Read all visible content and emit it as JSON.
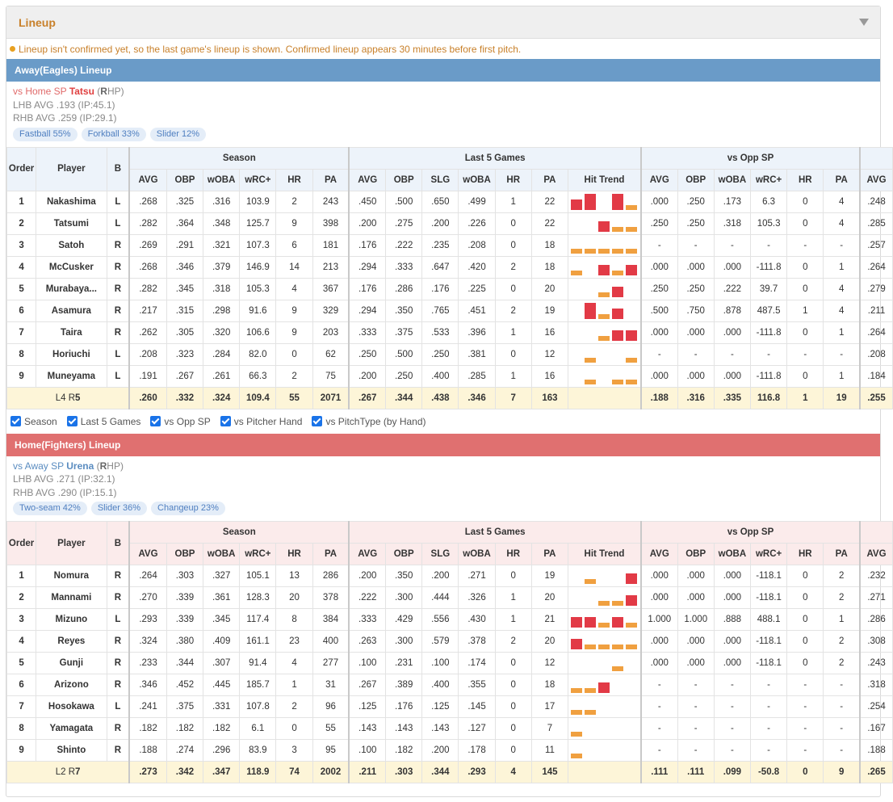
{
  "panel": {
    "title": "Lineup"
  },
  "notice": "Lineup isn't confirmed yet, so the last game's lineup is shown. Confirmed lineup appears 30 minutes before first pitch.",
  "headers": {
    "order": "Order",
    "player": "Player",
    "bats": "B",
    "season": "Season",
    "last5": "Last 5 Games",
    "vsopp": "vs Opp SP",
    "cols": {
      "avg": "AVG",
      "obp": "OBP",
      "woba": "wOBA",
      "wrc": "wRC+",
      "hr": "HR",
      "pa": "PA",
      "slg": "SLG",
      "trend": "Hit Trend"
    }
  },
  "filters": [
    "Season",
    "Last 5 Games",
    "vs Opp SP",
    "vs Pitcher Hand",
    "vs PitchType (by Hand)"
  ],
  "away": {
    "title": "Away(Eagles) Lineup",
    "sp_prefix": "vs Home SP ",
    "sp_name": "Tatsu",
    "sp_hand_open": " (",
    "sp_hand_letter": "R",
    "sp_hand_rest": "HP)",
    "lhb": "LHB AVG .193 (IP:45.1)",
    "rhb": "RHB AVG .259 (IP:29.1)",
    "pitches": [
      "Fastball 55%",
      "Forkball 33%",
      "Slider 12%"
    ],
    "rows": [
      {
        "o": "1",
        "name": "Nakashima",
        "b": "L",
        "s": [
          ".268",
          ".325",
          ".316",
          "103.9",
          "2",
          "243"
        ],
        "l5": [
          ".450",
          ".500",
          ".650",
          ".499",
          "1",
          "22"
        ],
        "trend": [
          [
            "h",
            0.55
          ],
          [
            "h",
            0.85
          ],
          [
            "n",
            0
          ],
          [
            "h",
            0.85
          ],
          [
            "o",
            0.25
          ]
        ],
        "vs": [
          ".000",
          ".250",
          ".173",
          "6.3",
          "0",
          "4"
        ],
        "extra": ".248"
      },
      {
        "o": "2",
        "name": "Tatsumi",
        "b": "L",
        "s": [
          ".282",
          ".364",
          ".348",
          "125.7",
          "9",
          "398"
        ],
        "l5": [
          ".200",
          ".275",
          ".200",
          ".226",
          "0",
          "22"
        ],
        "trend": [
          [
            "n",
            0
          ],
          [
            "n",
            0
          ],
          [
            "h",
            0.55
          ],
          [
            "o",
            0.25
          ],
          [
            "o",
            0.25
          ]
        ],
        "vs": [
          ".250",
          ".250",
          ".318",
          "105.3",
          "0",
          "4"
        ],
        "extra": ".285"
      },
      {
        "o": "3",
        "name": "Satoh",
        "b": "R",
        "s": [
          ".269",
          ".291",
          ".321",
          "107.3",
          "6",
          "181"
        ],
        "l5": [
          ".176",
          ".222",
          ".235",
          ".208",
          "0",
          "18"
        ],
        "trend": [
          [
            "o",
            0.25
          ],
          [
            "o",
            0.25
          ],
          [
            "o",
            0.25
          ],
          [
            "o",
            0.25
          ],
          [
            "o",
            0.25
          ]
        ],
        "vs": [
          "-",
          "-",
          "-",
          "-",
          "-",
          "-"
        ],
        "extra": ".257"
      },
      {
        "o": "4",
        "name": "McCusker",
        "b": "R",
        "s": [
          ".268",
          ".346",
          ".379",
          "146.9",
          "14",
          "213"
        ],
        "l5": [
          ".294",
          ".333",
          ".647",
          ".420",
          "2",
          "18"
        ],
        "trend": [
          [
            "o",
            0.25
          ],
          [
            "n",
            0
          ],
          [
            "h",
            0.55
          ],
          [
            "o",
            0.25
          ],
          [
            "h",
            0.55
          ]
        ],
        "vs": [
          ".000",
          ".000",
          ".000",
          "-111.8",
          "0",
          "1"
        ],
        "extra": ".264"
      },
      {
        "o": "5",
        "name": "Murabaya...",
        "b": "R",
        "s": [
          ".282",
          ".345",
          ".318",
          "105.3",
          "4",
          "367"
        ],
        "l5": [
          ".176",
          ".286",
          ".176",
          ".225",
          "0",
          "20"
        ],
        "trend": [
          [
            "n",
            0
          ],
          [
            "n",
            0
          ],
          [
            "o",
            0.25
          ],
          [
            "h",
            0.55
          ],
          [
            "n",
            0
          ]
        ],
        "vs": [
          ".250",
          ".250",
          ".222",
          "39.7",
          "0",
          "4"
        ],
        "extra": ".279"
      },
      {
        "o": "6",
        "name": "Asamura",
        "b": "R",
        "s": [
          ".217",
          ".315",
          ".298",
          "91.6",
          "9",
          "329"
        ],
        "l5": [
          ".294",
          ".350",
          ".765",
          ".451",
          "2",
          "19"
        ],
        "trend": [
          [
            "n",
            0
          ],
          [
            "h",
            0.85
          ],
          [
            "o",
            0.25
          ],
          [
            "h",
            0.55
          ],
          [
            "n",
            0
          ]
        ],
        "vs": [
          ".500",
          ".750",
          ".878",
          "487.5",
          "1",
          "4"
        ],
        "extra": ".211"
      },
      {
        "o": "7",
        "name": "Taira",
        "b": "R",
        "s": [
          ".262",
          ".305",
          ".320",
          "106.6",
          "9",
          "203"
        ],
        "l5": [
          ".333",
          ".375",
          ".533",
          ".396",
          "1",
          "16"
        ],
        "trend": [
          [
            "n",
            0
          ],
          [
            "n",
            0
          ],
          [
            "o",
            0.25
          ],
          [
            "h",
            0.55
          ],
          [
            "h",
            0.55
          ]
        ],
        "vs": [
          ".000",
          ".000",
          ".000",
          "-111.8",
          "0",
          "1"
        ],
        "extra": ".264"
      },
      {
        "o": "8",
        "name": "Horiuchi",
        "b": "L",
        "s": [
          ".208",
          ".323",
          ".284",
          "82.0",
          "0",
          "62"
        ],
        "l5": [
          ".250",
          ".500",
          ".250",
          ".381",
          "0",
          "12"
        ],
        "trend": [
          [
            "n",
            0
          ],
          [
            "o",
            0.25
          ],
          [
            "n",
            0
          ],
          [
            "n",
            0
          ],
          [
            "o",
            0.25
          ]
        ],
        "vs": [
          "-",
          "-",
          "-",
          "-",
          "-",
          "-"
        ],
        "extra": ".208"
      },
      {
        "o": "9",
        "name": "Muneyama",
        "b": "L",
        "s": [
          ".191",
          ".267",
          ".261",
          "66.3",
          "2",
          "75"
        ],
        "l5": [
          ".200",
          ".250",
          ".400",
          ".285",
          "1",
          "16"
        ],
        "trend": [
          [
            "n",
            0
          ],
          [
            "o",
            0.25
          ],
          [
            "n",
            0
          ],
          [
            "o",
            0.25
          ],
          [
            "o",
            0.25
          ]
        ],
        "vs": [
          ".000",
          ".000",
          ".000",
          "-111.8",
          "0",
          "1"
        ],
        "extra": ".184"
      }
    ],
    "total": {
      "summary_l": "L4 R",
      "summary_r": "5",
      "s": [
        [
          ".260",
          "r"
        ],
        [
          ".332",
          "r"
        ],
        [
          ".324",
          "r"
        ],
        [
          "109.4",
          "r"
        ],
        [
          "55",
          "r"
        ],
        [
          "2071",
          "n"
        ]
      ],
      "l5": [
        [
          ".267",
          "g"
        ],
        [
          ".344",
          "g"
        ],
        [
          ".438",
          "k"
        ],
        [
          ".346",
          "g"
        ],
        [
          "7",
          "g"
        ],
        [
          "163",
          "n"
        ]
      ],
      "vs": [
        [
          ".188",
          "g"
        ],
        [
          ".316",
          "g"
        ],
        [
          ".335",
          "g"
        ],
        [
          "116.8",
          "g"
        ],
        [
          "1",
          "g"
        ],
        [
          "19",
          "n"
        ]
      ],
      "extra": [
        ".255",
        "r"
      ]
    }
  },
  "home": {
    "title": "Home(Fighters) Lineup",
    "sp_prefix": "vs Away SP ",
    "sp_name": "Urena",
    "sp_hand_open": " (",
    "sp_hand_letter": "R",
    "sp_hand_rest": "HP)",
    "lhb": "LHB AVG .271 (IP:32.1)",
    "rhb": "RHB AVG .290 (IP:15.1)",
    "pitches": [
      "Two-seam 42%",
      "Slider 36%",
      "Changeup 23%"
    ],
    "rows": [
      {
        "o": "1",
        "name": "Nomura",
        "b": "R",
        "s": [
          ".264",
          ".303",
          ".327",
          "105.1",
          "13",
          "286"
        ],
        "l5": [
          ".200",
          ".350",
          ".200",
          ".271",
          "0",
          "19"
        ],
        "trend": [
          [
            "n",
            0
          ],
          [
            "o",
            0.25
          ],
          [
            "n",
            0
          ],
          [
            "n",
            0
          ],
          [
            "h",
            0.55
          ]
        ],
        "vs": [
          ".000",
          ".000",
          ".000",
          "-118.1",
          "0",
          "2"
        ],
        "extra": ".232"
      },
      {
        "o": "2",
        "name": "Mannami",
        "b": "R",
        "s": [
          ".270",
          ".339",
          ".361",
          "128.3",
          "20",
          "378"
        ],
        "l5": [
          ".222",
          ".300",
          ".444",
          ".326",
          "1",
          "20"
        ],
        "trend": [
          [
            "n",
            0
          ],
          [
            "n",
            0
          ],
          [
            "o",
            0.25
          ],
          [
            "o",
            0.25
          ],
          [
            "h",
            0.55
          ]
        ],
        "vs": [
          ".000",
          ".000",
          ".000",
          "-118.1",
          "0",
          "2"
        ],
        "extra": ".271"
      },
      {
        "o": "3",
        "name": "Mizuno",
        "b": "L",
        "s": [
          ".293",
          ".339",
          ".345",
          "117.4",
          "8",
          "384"
        ],
        "l5": [
          ".333",
          ".429",
          ".556",
          ".430",
          "1",
          "21"
        ],
        "trend": [
          [
            "h",
            0.55
          ],
          [
            "h",
            0.55
          ],
          [
            "o",
            0.25
          ],
          [
            "h",
            0.55
          ],
          [
            "o",
            0.25
          ]
        ],
        "vs": [
          "1.000",
          "1.000",
          ".888",
          "488.1",
          "0",
          "1"
        ],
        "extra": ".286"
      },
      {
        "o": "4",
        "name": "Reyes",
        "b": "R",
        "s": [
          ".324",
          ".380",
          ".409",
          "161.1",
          "23",
          "400"
        ],
        "l5": [
          ".263",
          ".300",
          ".579",
          ".378",
          "2",
          "20"
        ],
        "trend": [
          [
            "h",
            0.55
          ],
          [
            "o",
            0.25
          ],
          [
            "o",
            0.25
          ],
          [
            "o",
            0.25
          ],
          [
            "o",
            0.25
          ]
        ],
        "vs": [
          ".000",
          ".000",
          ".000",
          "-118.1",
          "0",
          "2"
        ],
        "extra": ".308"
      },
      {
        "o": "5",
        "name": "Gunji",
        "b": "R",
        "s": [
          ".233",
          ".344",
          ".307",
          "91.4",
          "4",
          "277"
        ],
        "l5": [
          ".100",
          ".231",
          ".100",
          ".174",
          "0",
          "12"
        ],
        "trend": [
          [
            "n",
            0
          ],
          [
            "n",
            0
          ],
          [
            "n",
            0
          ],
          [
            "o",
            0.25
          ],
          [
            "n",
            0
          ]
        ],
        "vs": [
          ".000",
          ".000",
          ".000",
          "-118.1",
          "0",
          "2"
        ],
        "extra": ".243"
      },
      {
        "o": "6",
        "name": "Arizono",
        "b": "R",
        "s": [
          ".346",
          ".452",
          ".445",
          "185.7",
          "1",
          "31"
        ],
        "l5": [
          ".267",
          ".389",
          ".400",
          ".355",
          "0",
          "18"
        ],
        "trend": [
          [
            "o",
            0.25
          ],
          [
            "o",
            0.25
          ],
          [
            "h",
            0.55
          ],
          [
            "n",
            0
          ],
          [
            "n",
            0
          ]
        ],
        "vs": [
          "-",
          "-",
          "-",
          "-",
          "-",
          "-"
        ],
        "extra": ".318"
      },
      {
        "o": "7",
        "name": "Hosokawa",
        "b": "L",
        "s": [
          ".241",
          ".375",
          ".331",
          "107.8",
          "2",
          "96"
        ],
        "l5": [
          ".125",
          ".176",
          ".125",
          ".145",
          "0",
          "17"
        ],
        "trend": [
          [
            "o",
            0.25
          ],
          [
            "o",
            0.25
          ],
          [
            "n",
            0
          ],
          [
            "n",
            0
          ],
          [
            "n",
            0
          ]
        ],
        "vs": [
          "-",
          "-",
          "-",
          "-",
          "-",
          "-"
        ],
        "extra": ".254"
      },
      {
        "o": "8",
        "name": "Yamagata",
        "b": "R",
        "s": [
          ".182",
          ".182",
          ".182",
          "6.1",
          "0",
          "55"
        ],
        "l5": [
          ".143",
          ".143",
          ".143",
          ".127",
          "0",
          "7"
        ],
        "trend": [
          [
            "o",
            0.25
          ],
          [
            "n",
            0
          ],
          [
            "n",
            0
          ],
          [
            "n",
            0
          ],
          [
            "n",
            0
          ]
        ],
        "vs": [
          "-",
          "-",
          "-",
          "-",
          "-",
          "-"
        ],
        "extra": ".167"
      },
      {
        "o": "9",
        "name": "Shinto",
        "b": "R",
        "s": [
          ".188",
          ".274",
          ".296",
          "83.9",
          "3",
          "95"
        ],
        "l5": [
          ".100",
          ".182",
          ".200",
          ".178",
          "0",
          "11"
        ],
        "trend": [
          [
            "o",
            0.25
          ],
          [
            "n",
            0
          ],
          [
            "n",
            0
          ],
          [
            "n",
            0
          ],
          [
            "n",
            0
          ]
        ],
        "vs": [
          "-",
          "-",
          "-",
          "-",
          "-",
          "-"
        ],
        "extra": ".188"
      }
    ],
    "total": {
      "summary_l": "L2 R",
      "summary_r": "7",
      "s": [
        [
          ".273",
          "g"
        ],
        [
          ".342",
          "g"
        ],
        [
          ".347",
          "g"
        ],
        [
          "118.9",
          "g"
        ],
        [
          "74",
          "g"
        ],
        [
          "2002",
          "n"
        ]
      ],
      "l5": [
        [
          ".211",
          "r"
        ],
        [
          ".303",
          "r"
        ],
        [
          ".344",
          "k"
        ],
        [
          ".293",
          "r"
        ],
        [
          "4",
          "r"
        ],
        [
          "145",
          "n"
        ]
      ],
      "vs": [
        [
          ".111",
          "r"
        ],
        [
          ".111",
          "r"
        ],
        [
          ".099",
          "r"
        ],
        [
          "-50.8",
          "r"
        ],
        [
          "0",
          "r"
        ],
        [
          "9",
          "n"
        ]
      ],
      "extra": [
        ".265",
        "g"
      ]
    }
  },
  "colors": {
    "accent": "#c8802a",
    "away": "#6a9bc8",
    "home": "#e07070",
    "hit": "#e23a46",
    "out": "#f0a040",
    "good": "#3aa04a",
    "bad": "#e03030"
  }
}
